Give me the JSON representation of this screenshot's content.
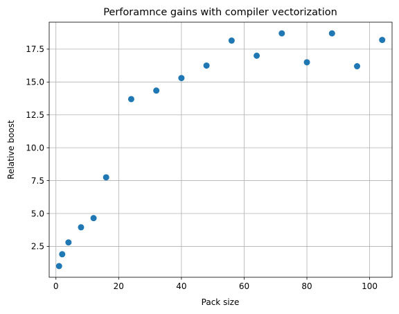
{
  "chart_data": {
    "type": "scatter",
    "title": "Perforamnce gains with compiler vectorization",
    "xlabel": "Pack size",
    "ylabel": "Relative boost",
    "xlim": [
      -2.15,
      107.15
    ],
    "ylim": [
      0.15,
      19.55
    ],
    "xticks": [
      0,
      20,
      40,
      60,
      80,
      100
    ],
    "xtick_labels": [
      "0",
      "20",
      "40",
      "60",
      "80",
      "100"
    ],
    "yticks": [
      2.5,
      5.0,
      7.5,
      10.0,
      12.5,
      15.0,
      17.5
    ],
    "ytick_labels": [
      "2.5",
      "5.0",
      "7.5",
      "10.0",
      "12.5",
      "15.0",
      "17.5"
    ],
    "grid": true,
    "marker_color": "#1f77b4",
    "points": [
      {
        "x": 1,
        "y": 1.0
      },
      {
        "x": 2,
        "y": 1.9
      },
      {
        "x": 4,
        "y": 2.8
      },
      {
        "x": 8,
        "y": 3.95
      },
      {
        "x": 12,
        "y": 4.65
      },
      {
        "x": 16,
        "y": 7.75
      },
      {
        "x": 24,
        "y": 13.7
      },
      {
        "x": 32,
        "y": 14.35
      },
      {
        "x": 40,
        "y": 15.3
      },
      {
        "x": 48,
        "y": 16.25
      },
      {
        "x": 56,
        "y": 18.15
      },
      {
        "x": 64,
        "y": 17.0
      },
      {
        "x": 72,
        "y": 18.7
      },
      {
        "x": 80,
        "y": 16.5
      },
      {
        "x": 88,
        "y": 18.7
      },
      {
        "x": 96,
        "y": 16.2
      },
      {
        "x": 104,
        "y": 18.2
      }
    ]
  }
}
